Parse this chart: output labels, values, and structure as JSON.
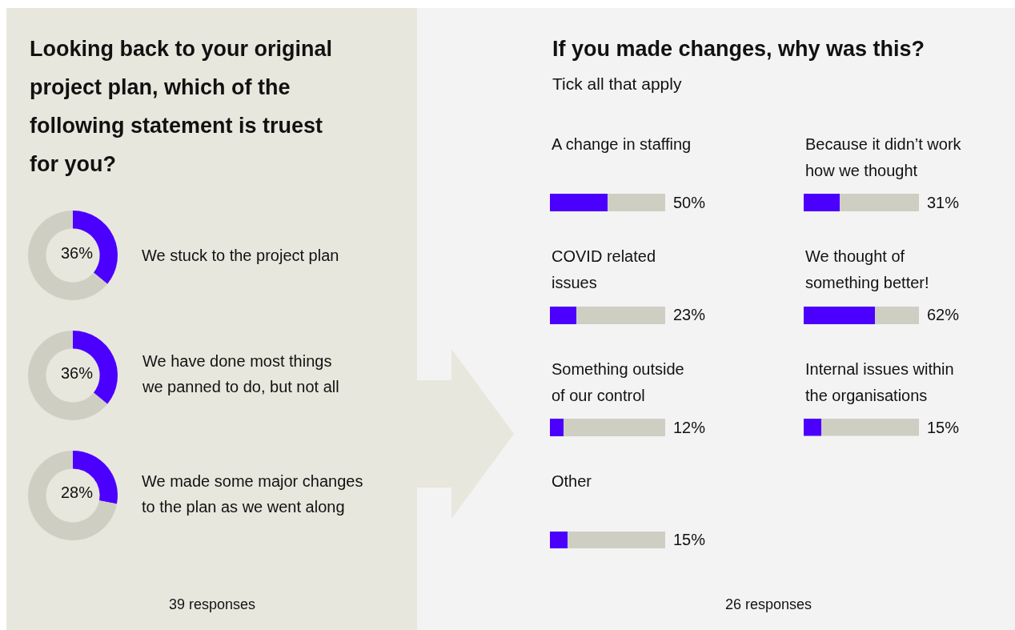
{
  "chart_data": [
    {
      "type": "donut",
      "title": "Looking back to your original\nproject plan, which of the\nfollowing statement is truest\nfor you?",
      "categories": [
        "We stuck to the project plan",
        null
      ],
      "values": [
        36,
        64
      ],
      "colors": [
        "#4b00ff",
        "#cfcec3"
      ],
      "value_labels": [
        "36%",
        null
      ],
      "annotations": [
        "39 responses"
      ]
    },
    {
      "type": "donut",
      "categories": [
        "We have done most things\nwe panned to do, but not all",
        null
      ],
      "values": [
        36,
        64
      ],
      "colors": [
        "#4b00ff",
        "#cfcec3"
      ],
      "value_labels": [
        "36%",
        null
      ]
    },
    {
      "type": "donut",
      "categories": [
        "We made some major changes\nto the plan as we went along",
        null
      ],
      "values": [
        28,
        72
      ],
      "colors": [
        "#4b00ff",
        "#cfcec3"
      ],
      "value_labels": [
        "28%",
        null
      ]
    },
    {
      "type": "bar",
      "orientation": "horizontal",
      "stacked": true,
      "title": "If you made changes, why was this?",
      "subtitle": "Tick all that apply",
      "categories": [
        "A change in staffing",
        "COVID related\nissues",
        "Something outside\nof our control",
        "Other"
      ],
      "series": [
        {
          "color": "#4b00ff",
          "values": [
            50,
            23,
            12,
            15
          ],
          "value_labels": [
            "50%",
            "23%",
            "12%",
            "15%"
          ]
        },
        {
          "color": "#cfcec3",
          "values": [
            50,
            77,
            88,
            85
          ]
        }
      ],
      "xlim": [
        0,
        100
      ],
      "tick_labels": "y",
      "annotations": [
        "26 responses"
      ]
    },
    {
      "type": "bar",
      "orientation": "horizontal",
      "stacked": true,
      "categories": [
        "Because it didn’t work\nhow we thought",
        "We thought of\nsomething better!",
        "Internal issues within\nthe organisations"
      ],
      "series": [
        {
          "color": "#4b00ff",
          "values": [
            31,
            62,
            15
          ],
          "value_labels": [
            "31%",
            "62%",
            "15%"
          ]
        },
        {
          "color": "#cfcec3",
          "values": [
            69,
            38,
            85
          ]
        }
      ],
      "xlim": [
        0,
        100
      ],
      "tick_labels": "y"
    }
  ]
}
